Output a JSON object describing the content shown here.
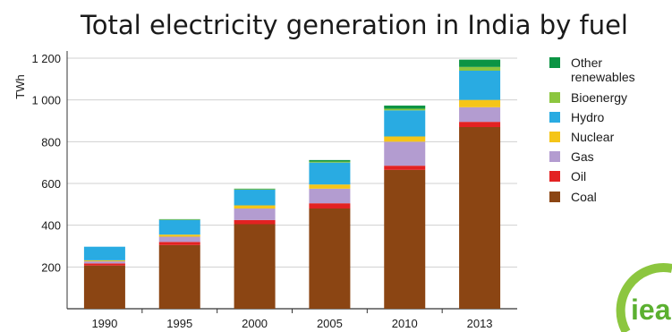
{
  "chart_data": {
    "type": "bar",
    "stacked": true,
    "title": "Total electricity generation in India by fuel",
    "ylabel": "TWh",
    "ylim": [
      0,
      1200
    ],
    "yticks": [
      200,
      400,
      600,
      800,
      1000,
      1200
    ],
    "ytick_labels": [
      "200",
      "400",
      "600",
      "800",
      "1 000",
      "1 200"
    ],
    "grid": true,
    "legend_position": "right",
    "categories": [
      "1990",
      "1995",
      "2000",
      "2005",
      "2010",
      "2013"
    ],
    "series": [
      {
        "name": "Coal",
        "color": "#8B4513",
        "values": [
          207,
          305,
          405,
          480,
          665,
          870
        ]
      },
      {
        "name": "Oil",
        "color": "#E32222",
        "values": [
          10,
          15,
          20,
          25,
          20,
          25
        ]
      },
      {
        "name": "Gas",
        "color": "#B39CD0",
        "values": [
          10,
          25,
          55,
          70,
          115,
          70
        ]
      },
      {
        "name": "Nuclear",
        "color": "#F5C518",
        "values": [
          5,
          10,
          15,
          20,
          25,
          35
        ]
      },
      {
        "name": "Hydro",
        "color": "#29ABE2",
        "values": [
          65,
          70,
          75,
          105,
          125,
          140
        ]
      },
      {
        "name": "Bioenergy",
        "color": "#8CC63F",
        "values": [
          0,
          2,
          3,
          5,
          8,
          18
        ]
      },
      {
        "name": "Other renewables",
        "color": "#0B9444",
        "values": [
          0,
          2,
          2,
          7,
          15,
          35
        ]
      }
    ]
  },
  "legend": {
    "items": [
      {
        "key": "other",
        "lines": [
          "Other",
          "renewables"
        ],
        "color": "#0B9444"
      },
      {
        "key": "bioenergy",
        "lines": [
          "Bioenergy"
        ],
        "color": "#8CC63F"
      },
      {
        "key": "hydro",
        "lines": [
          "Hydro"
        ],
        "color": "#29ABE2"
      },
      {
        "key": "nuclear",
        "lines": [
          "Nuclear"
        ],
        "color": "#F5C518"
      },
      {
        "key": "gas",
        "lines": [
          "Gas"
        ],
        "color": "#B39CD0"
      },
      {
        "key": "oil",
        "lines": [
          "Oil"
        ],
        "color": "#E32222"
      },
      {
        "key": "coal",
        "lines": [
          "Coal"
        ],
        "color": "#8B4513"
      }
    ]
  },
  "logo": {
    "text": "iea",
    "color": "#5BB030"
  }
}
